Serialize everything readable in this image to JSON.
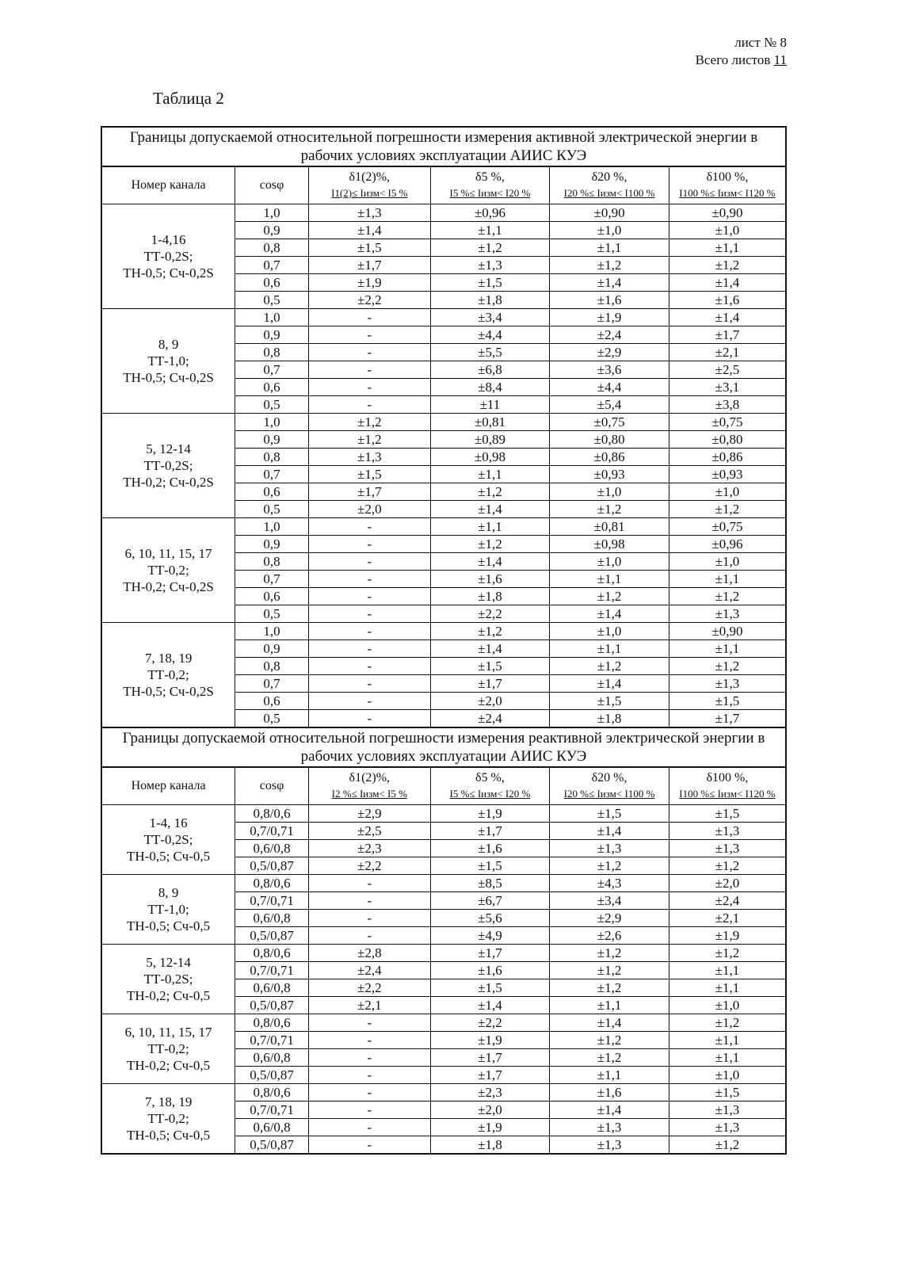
{
  "header": {
    "sheet": "лист № 8",
    "total_label": "Всего листов",
    "total": "11"
  },
  "title": "Таблица 2",
  "columns": [
    "Номер канала",
    "cosφ",
    "δ1(2)%,",
    "δ5 %,",
    "δ20 %,",
    "δ100 %,"
  ],
  "active": {
    "caption": "Границы допускаемой относительной погрешности измерения активной электрической энергии в рабочих условиях эксплуатации АИИС КУЭ",
    "ranges": [
      "I1(2)≤ Iизм< I5 %",
      "I5 %≤ Iизм< I20 %",
      "I20 %≤ Iизм< I100 %",
      "I100 %≤ Iизм< I120 %"
    ],
    "groups": [
      {
        "channel": [
          "1-4,16",
          "ТТ-0,2S;",
          "ТН-0,5; Сч-0,2S"
        ],
        "rows": [
          [
            "1,0",
            "±1,3",
            "±0,96",
            "±0,90",
            "±0,90"
          ],
          [
            "0,9",
            "±1,4",
            "±1,1",
            "±1,0",
            "±1,0"
          ],
          [
            "0,8",
            "±1,5",
            "±1,2",
            "±1,1",
            "±1,1"
          ],
          [
            "0,7",
            "±1,7",
            "±1,3",
            "±1,2",
            "±1,2"
          ],
          [
            "0,6",
            "±1,9",
            "±1,5",
            "±1,4",
            "±1,4"
          ],
          [
            "0,5",
            "±2,2",
            "±1,8",
            "±1,6",
            "±1,6"
          ]
        ]
      },
      {
        "channel": [
          "8, 9",
          "ТТ-1,0;",
          "ТН-0,5; Сч-0,2S"
        ],
        "rows": [
          [
            "1,0",
            "-",
            "±3,4",
            "±1,9",
            "±1,4"
          ],
          [
            "0,9",
            "-",
            "±4,4",
            "±2,4",
            "±1,7"
          ],
          [
            "0,8",
            "-",
            "±5,5",
            "±2,9",
            "±2,1"
          ],
          [
            "0,7",
            "-",
            "±6,8",
            "±3,6",
            "±2,5"
          ],
          [
            "0,6",
            "-",
            "±8,4",
            "±4,4",
            "±3,1"
          ],
          [
            "0,5",
            "-",
            "±11",
            "±5,4",
            "±3,8"
          ]
        ]
      },
      {
        "channel": [
          "5, 12-14",
          "ТТ-0,2S;",
          "ТН-0,2; Сч-0,2S"
        ],
        "rows": [
          [
            "1,0",
            "±1,2",
            "±0,81",
            "±0,75",
            "±0,75"
          ],
          [
            "0,9",
            "±1,2",
            "±0,89",
            "±0,80",
            "±0,80"
          ],
          [
            "0,8",
            "±1,3",
            "±0,98",
            "±0,86",
            "±0,86"
          ],
          [
            "0,7",
            "±1,5",
            "±1,1",
            "±0,93",
            "±0,93"
          ],
          [
            "0,6",
            "±1,7",
            "±1,2",
            "±1,0",
            "±1,0"
          ],
          [
            "0,5",
            "±2,0",
            "±1,4",
            "±1,2",
            "±1,2"
          ]
        ]
      },
      {
        "channel": [
          "6, 10, 11, 15, 17",
          "ТТ-0,2;",
          "ТН-0,2; Сч-0,2S"
        ],
        "rows": [
          [
            "1,0",
            "-",
            "±1,1",
            "±0,81",
            "±0,75"
          ],
          [
            "0,9",
            "-",
            "±1,2",
            "±0,98",
            "±0,96"
          ],
          [
            "0,8",
            "-",
            "±1,4",
            "±1,0",
            "±1,0"
          ],
          [
            "0,7",
            "-",
            "±1,6",
            "±1,1",
            "±1,1"
          ],
          [
            "0,6",
            "-",
            "±1,8",
            "±1,2",
            "±1,2"
          ],
          [
            "0,5",
            "-",
            "±2,2",
            "±1,4",
            "±1,3"
          ]
        ]
      },
      {
        "channel": [
          "7, 18, 19",
          "ТТ-0,2;",
          "ТН-0,5; Сч-0,2S"
        ],
        "rows": [
          [
            "1,0",
            "-",
            "±1,2",
            "±1,0",
            "±0,90"
          ],
          [
            "0,9",
            "-",
            "±1,4",
            "±1,1",
            "±1,1"
          ],
          [
            "0,8",
            "-",
            "±1,5",
            "±1,2",
            "±1,2"
          ],
          [
            "0,7",
            "-",
            "±1,7",
            "±1,4",
            "±1,3"
          ],
          [
            "0,6",
            "-",
            "±2,0",
            "±1,5",
            "±1,5"
          ],
          [
            "0,5",
            "-",
            "±2,4",
            "±1,8",
            "±1,7"
          ]
        ]
      }
    ]
  },
  "reactive": {
    "caption": "Границы допускаемой относительной погрешности измерения реактивной электрической энергии в рабочих условиях эксплуатации АИИС КУЭ",
    "ranges": [
      "I2 %≤ Iизм< I5 %",
      "I5 %≤ Iизм< I20 %",
      "I20 %≤ Iизм< I100 %",
      "I100 %≤ Iизм< I120 %"
    ],
    "groups": [
      {
        "channel": [
          "1-4, 16",
          "ТТ-0,2S;",
          "ТН-0,5; Сч-0,5"
        ],
        "rows": [
          [
            "0,8/0,6",
            "±2,9",
            "±1,9",
            "±1,5",
            "±1,5"
          ],
          [
            "0,7/0,71",
            "±2,5",
            "±1,7",
            "±1,4",
            "±1,3"
          ],
          [
            "0,6/0,8",
            "±2,3",
            "±1,6",
            "±1,3",
            "±1,3"
          ],
          [
            "0,5/0,87",
            "±2,2",
            "±1,5",
            "±1,2",
            "±1,2"
          ]
        ]
      },
      {
        "channel": [
          "8, 9",
          "ТТ-1,0;",
          "ТН-0,5; Сч-0,5"
        ],
        "rows": [
          [
            "0,8/0,6",
            "-",
            "±8,5",
            "±4,3",
            "±2,0"
          ],
          [
            "0,7/0,71",
            "-",
            "±6,7",
            "±3,4",
            "±2,4"
          ],
          [
            "0,6/0,8",
            "-",
            "±5,6",
            "±2,9",
            "±2,1"
          ],
          [
            "0,5/0,87",
            "-",
            "±4,9",
            "±2,6",
            "±1,9"
          ]
        ]
      },
      {
        "channel": [
          "5, 12-14",
          "ТТ-0,2S;",
          "ТН-0,2; Сч-0,5"
        ],
        "rows": [
          [
            "0,8/0,6",
            "±2,8",
            "±1,7",
            "±1,2",
            "±1,2"
          ],
          [
            "0,7/0,71",
            "±2,4",
            "±1,6",
            "±1,2",
            "±1,1"
          ],
          [
            "0,6/0,8",
            "±2,2",
            "±1,5",
            "±1,2",
            "±1,1"
          ],
          [
            "0,5/0,87",
            "±2,1",
            "±1,4",
            "±1,1",
            "±1,0"
          ]
        ]
      },
      {
        "channel": [
          "6, 10, 11, 15, 17",
          "ТТ-0,2;",
          "ТН-0,2; Сч-0,5"
        ],
        "rows": [
          [
            "0,8/0,6",
            "-",
            "±2,2",
            "±1,4",
            "±1,2"
          ],
          [
            "0,7/0,71",
            "-",
            "±1,9",
            "±1,2",
            "±1,1"
          ],
          [
            "0,6/0,8",
            "-",
            "±1,7",
            "±1,2",
            "±1,1"
          ],
          [
            "0,5/0,87",
            "-",
            "±1,7",
            "±1,1",
            "±1,0"
          ]
        ]
      },
      {
        "channel": [
          "7, 18, 19",
          "ТТ-0,2;",
          "ТН-0,5; Сч-0,5"
        ],
        "rows": [
          [
            "0,8/0,6",
            "-",
            "±2,3",
            "±1,6",
            "±1,5"
          ],
          [
            "0,7/0,71",
            "-",
            "±2,0",
            "±1,4",
            "±1,3"
          ],
          [
            "0,6/0,8",
            "-",
            "±1,9",
            "±1,3",
            "±1,3"
          ],
          [
            "0,5/0,87",
            "-",
            "±1,8",
            "±1,3",
            "±1,2"
          ]
        ]
      }
    ]
  }
}
